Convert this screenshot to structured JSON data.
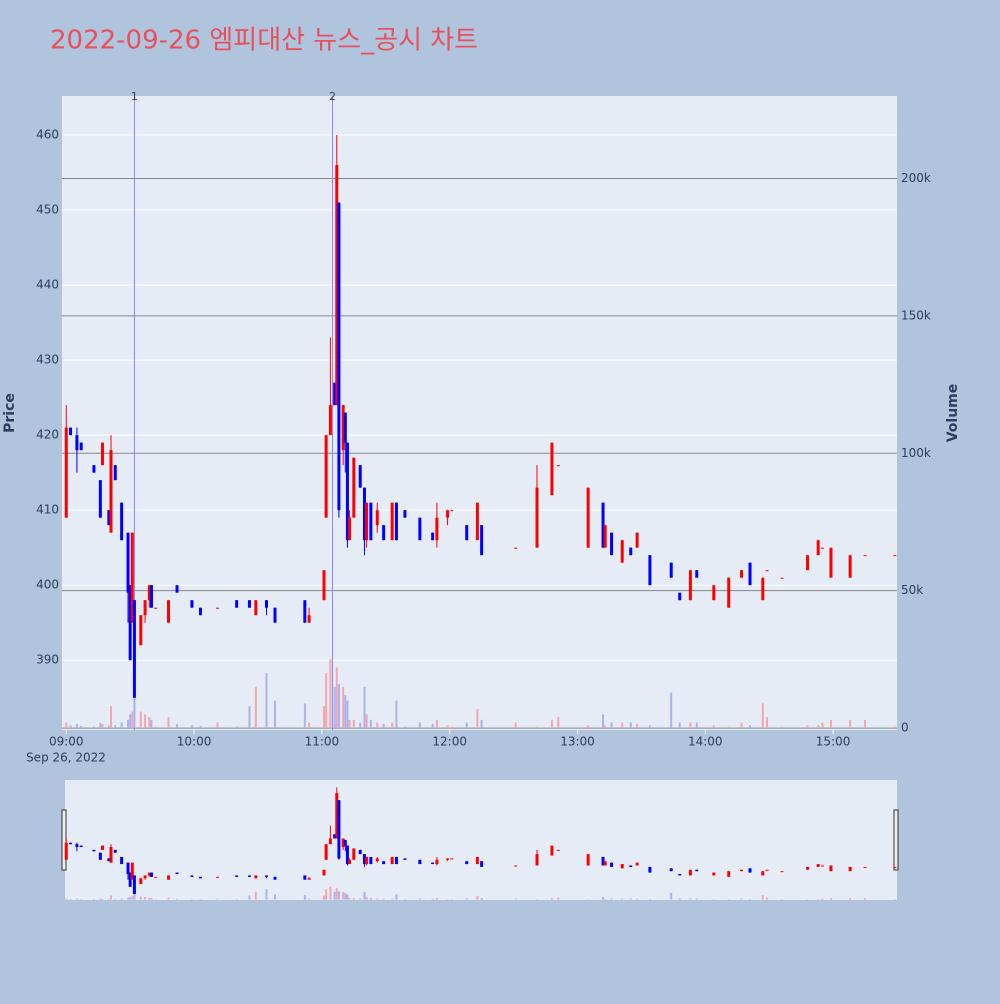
{
  "chart_data": {
    "type": "candlestick",
    "title": "2022-09-26 엠피대산 뉴스_공시 차트",
    "y_label": "Price",
    "y2_label": "Volume",
    "x_date_label": "Sep 26, 2022",
    "increasing_color": "#ff0000",
    "decreasing_color": "#0000ff",
    "volume_up_color": "#f4a6b0",
    "volume_down_color": "#a9b2f0",
    "xlim": [
      "2022-09-26 08:58",
      "2022-09-26 15:30"
    ],
    "xticks": [
      {
        "value": "2022-09-26 09:00",
        "label": "09:00"
      },
      {
        "value": "2022-09-26 10:00",
        "label": "10:00"
      },
      {
        "value": "2022-09-26 11:00",
        "label": "11:00"
      },
      {
        "value": "2022-09-26 12:00",
        "label": "12:00"
      },
      {
        "value": "2022-09-26 13:00",
        "label": "13:00"
      },
      {
        "value": "2022-09-26 14:00",
        "label": "14:00"
      },
      {
        "value": "2022-09-26 15:00",
        "label": "15:00"
      }
    ],
    "ylim": [
      380.7,
      465.2
    ],
    "yticks": [
      390,
      400,
      410,
      420,
      430,
      440,
      450,
      460
    ],
    "y2lim": [
      -700,
      230000
    ],
    "y2ticks": [
      0,
      {
        "value": 50000,
        "label": "50k"
      },
      {
        "value": 100000,
        "label": "100k"
      },
      {
        "value": 150000,
        "label": "150k"
      },
      {
        "value": 200000,
        "label": "200k"
      }
    ],
    "annotations": [
      {
        "x": "2022-09-26 09:32",
        "text": "1"
      },
      {
        "x": "2022-09-26 11:05",
        "text": "2"
      }
    ],
    "x": [
      "2022-09-26 09:00",
      "2022-09-26 09:02",
      "2022-09-26 09:05",
      "2022-09-26 09:07",
      "2022-09-26 09:13",
      "2022-09-26 09:16",
      "2022-09-26 09:17",
      "2022-09-26 09:20",
      "2022-09-26 09:21",
      "2022-09-26 09:23",
      "2022-09-26 09:26",
      "2022-09-26 09:29",
      "2022-09-26 09:30",
      "2022-09-26 09:31",
      "2022-09-26 09:32",
      "2022-09-26 09:35",
      "2022-09-26 09:37",
      "2022-09-26 09:39",
      "2022-09-26 09:40",
      "2022-09-26 09:42",
      "2022-09-26 09:48",
      "2022-09-26 09:52",
      "2022-09-26 09:59",
      "2022-09-26 10:03",
      "2022-09-26 10:11",
      "2022-09-26 10:20",
      "2022-09-26 10:26",
      "2022-09-26 10:29",
      "2022-09-26 10:34",
      "2022-09-26 10:38",
      "2022-09-26 10:52",
      "2022-09-26 10:54",
      "2022-09-26 11:01",
      "2022-09-26 11:02",
      "2022-09-26 11:04",
      "2022-09-26 11:06",
      "2022-09-26 11:07",
      "2022-09-26 11:08",
      "2022-09-26 11:10",
      "2022-09-26 11:11",
      "2022-09-26 11:12",
      "2022-09-26 11:13",
      "2022-09-26 11:15",
      "2022-09-26 11:18",
      "2022-09-26 11:20",
      "2022-09-26 11:21",
      "2022-09-26 11:23",
      "2022-09-26 11:26",
      "2022-09-26 11:29",
      "2022-09-26 11:33",
      "2022-09-26 11:35",
      "2022-09-26 11:39",
      "2022-09-26 11:46",
      "2022-09-26 11:52",
      "2022-09-26 11:54",
      "2022-09-26 11:59",
      "2022-09-26 12:01",
      "2022-09-26 12:08",
      "2022-09-26 12:13",
      "2022-09-26 12:15",
      "2022-09-26 12:31",
      "2022-09-26 12:41",
      "2022-09-26 12:48",
      "2022-09-26 12:51",
      "2022-09-26 13:05",
      "2022-09-26 13:12",
      "2022-09-26 13:13",
      "2022-09-26 13:16",
      "2022-09-26 13:21",
      "2022-09-26 13:25",
      "2022-09-26 13:28",
      "2022-09-26 13:34",
      "2022-09-26 13:44",
      "2022-09-26 13:48",
      "2022-09-26 13:53",
      "2022-09-26 13:56",
      "2022-09-26 14:04",
      "2022-09-26 14:11",
      "2022-09-26 14:17",
      "2022-09-26 14:21",
      "2022-09-26 14:27",
      "2022-09-26 14:29",
      "2022-09-26 14:36",
      "2022-09-26 14:48",
      "2022-09-26 14:53",
      "2022-09-26 14:55",
      "2022-09-26 14:59",
      "2022-09-26 15:08",
      "2022-09-26 15:15",
      "2022-09-26 15:29"
    ],
    "open": [
      409,
      421,
      420,
      419,
      416,
      414,
      416,
      410,
      407,
      416,
      411,
      407,
      400,
      395,
      398,
      392,
      396,
      398,
      400,
      397,
      395,
      400,
      398,
      397,
      397,
      398,
      398,
      396,
      398,
      397,
      398,
      395,
      398,
      409,
      420,
      427,
      424,
      451,
      418,
      423,
      419,
      406,
      409,
      416,
      413,
      406,
      411,
      408,
      408,
      406,
      411,
      410,
      409,
      407,
      406,
      409,
      410,
      408,
      406,
      408,
      405,
      405,
      412,
      416,
      405,
      411,
      405,
      407,
      403,
      405,
      405,
      404,
      403,
      399,
      398,
      402,
      398,
      397,
      401,
      403,
      398,
      402,
      401,
      402,
      404,
      405,
      401,
      401,
      404,
      404
    ],
    "high": [
      424,
      421,
      421,
      419,
      416,
      414,
      419,
      410,
      420,
      416,
      411,
      407,
      400,
      407,
      398,
      396,
      398,
      400,
      400,
      397,
      398,
      400,
      398,
      397,
      397,
      398,
      398,
      398,
      398,
      397,
      398,
      397,
      402,
      420,
      433,
      427,
      460,
      451,
      424,
      423,
      419,
      410,
      417,
      416,
      413,
      411,
      411,
      411,
      408,
      411,
      411,
      410,
      409,
      407,
      411,
      410,
      410,
      408,
      411,
      408,
      405,
      416,
      419,
      416,
      413,
      411,
      408,
      407,
      406,
      405,
      407,
      404,
      403,
      399,
      402,
      402,
      400,
      401,
      402,
      403,
      401,
      402,
      401,
      404,
      406,
      405,
      405,
      404,
      404,
      404
    ],
    "low": [
      409,
      420,
      415,
      418,
      415,
      409,
      416,
      408,
      407,
      414,
      406,
      395,
      390,
      395,
      385,
      392,
      395,
      397,
      397,
      397,
      395,
      399,
      397,
      396,
      397,
      397,
      397,
      396,
      396,
      395,
      395,
      395,
      398,
      409,
      420,
      424,
      424,
      409,
      416,
      415,
      405,
      406,
      409,
      413,
      404,
      405,
      406,
      407,
      406,
      406,
      406,
      409,
      406,
      406,
      405,
      408,
      410,
      406,
      406,
      404,
      405,
      405,
      412,
      416,
      405,
      405,
      405,
      404,
      403,
      404,
      405,
      400,
      401,
      398,
      398,
      401,
      398,
      397,
      401,
      400,
      398,
      402,
      401,
      402,
      404,
      405,
      401,
      401,
      404,
      404
    ],
    "close": [
      421,
      420,
      418,
      418,
      415,
      409,
      419,
      408,
      418,
      414,
      406,
      399,
      390,
      407,
      385,
      396,
      398,
      400,
      397,
      397,
      398,
      399,
      397,
      396,
      397,
      397,
      397,
      398,
      397,
      395,
      395,
      396,
      402,
      420,
      424,
      424,
      456,
      410,
      424,
      419,
      406,
      409,
      417,
      413,
      406,
      411,
      406,
      410,
      406,
      411,
      406,
      409,
      406,
      406,
      409,
      410,
      410,
      406,
      411,
      404,
      405,
      413,
      419,
      416,
      413,
      405,
      408,
      404,
      406,
      404,
      407,
      400,
      401,
      398,
      402,
      401,
      400,
      401,
      402,
      400,
      401,
      402,
      401,
      404,
      406,
      405,
      405,
      404,
      404,
      404
    ],
    "volume": [
      2000,
      1000,
      1500,
      800,
      500,
      2000,
      1500,
      1000,
      8000,
      1000,
      2000,
      3000,
      5000,
      6000,
      15000,
      6000,
      5000,
      4000,
      3000,
      500,
      4000,
      1500,
      1000,
      800,
      2000,
      600,
      8000,
      15000,
      20000,
      10000,
      9000,
      2000,
      8000,
      20000,
      25000,
      15000,
      22000,
      16000,
      15000,
      12000,
      10000,
      3000,
      3000,
      2000,
      15000,
      5000,
      3000,
      2000,
      1500,
      2000,
      10000,
      500,
      2000,
      1500,
      3000,
      1000,
      500,
      2000,
      7000,
      3000,
      2000,
      500,
      3000,
      4000,
      1000,
      5000,
      1000,
      2000,
      2000,
      2000,
      1500,
      1000,
      13000,
      2000,
      2000,
      2000,
      1000,
      500,
      2000,
      1000,
      9000,
      4000,
      500,
      1000,
      1000,
      2000,
      3000,
      3000,
      3000,
      500
    ]
  }
}
